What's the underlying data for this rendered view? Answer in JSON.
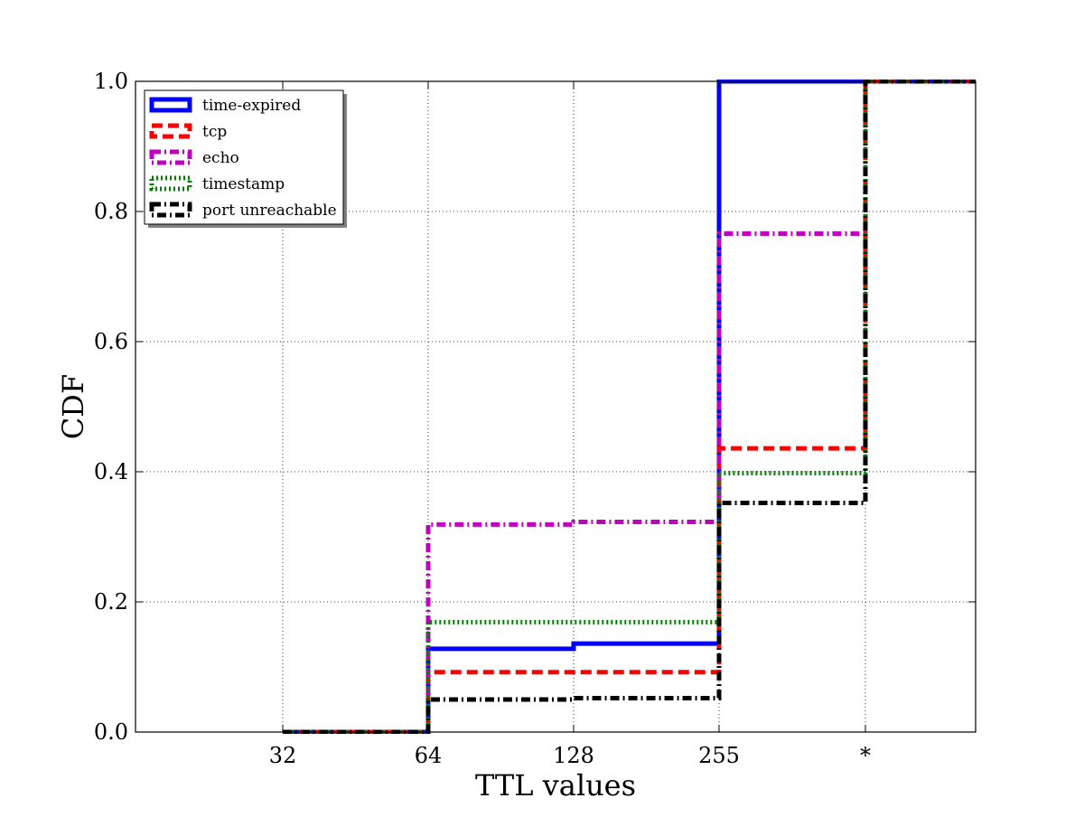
{
  "chart_data": {
    "type": "line",
    "step": true,
    "title": "",
    "xlabel": "TTL values",
    "ylabel": "CDF",
    "categories": [
      "32",
      "64",
      "128",
      "255",
      "*"
    ],
    "ylim": [
      0,
      1
    ],
    "yticks": [
      "0.0",
      "0.2",
      "0.4",
      "0.6",
      "0.8",
      "1.0"
    ],
    "grid": true,
    "legend_position": "top-left",
    "series": [
      {
        "name": "time-expired",
        "color": "#0000ff",
        "style": "solid",
        "values": [
          0.0,
          0.128,
          0.136,
          1.0,
          1.0
        ]
      },
      {
        "name": "tcp",
        "color": "#ff0000",
        "style": "dashed",
        "values": [
          0.0,
          0.092,
          0.092,
          0.436,
          1.0
        ]
      },
      {
        "name": "echo",
        "color": "#bf00bf",
        "style": "dashdot",
        "values": [
          0.0,
          0.319,
          0.323,
          0.766,
          1.0
        ]
      },
      {
        "name": "timestamp",
        "color": "#007f00",
        "style": "dotted",
        "values": [
          0.0,
          0.169,
          0.169,
          0.398,
          1.0
        ]
      },
      {
        "name": "port unreachable",
        "color": "#000000",
        "style": "dashdot",
        "values": [
          0.0,
          0.05,
          0.052,
          0.352,
          1.0
        ]
      }
    ]
  }
}
